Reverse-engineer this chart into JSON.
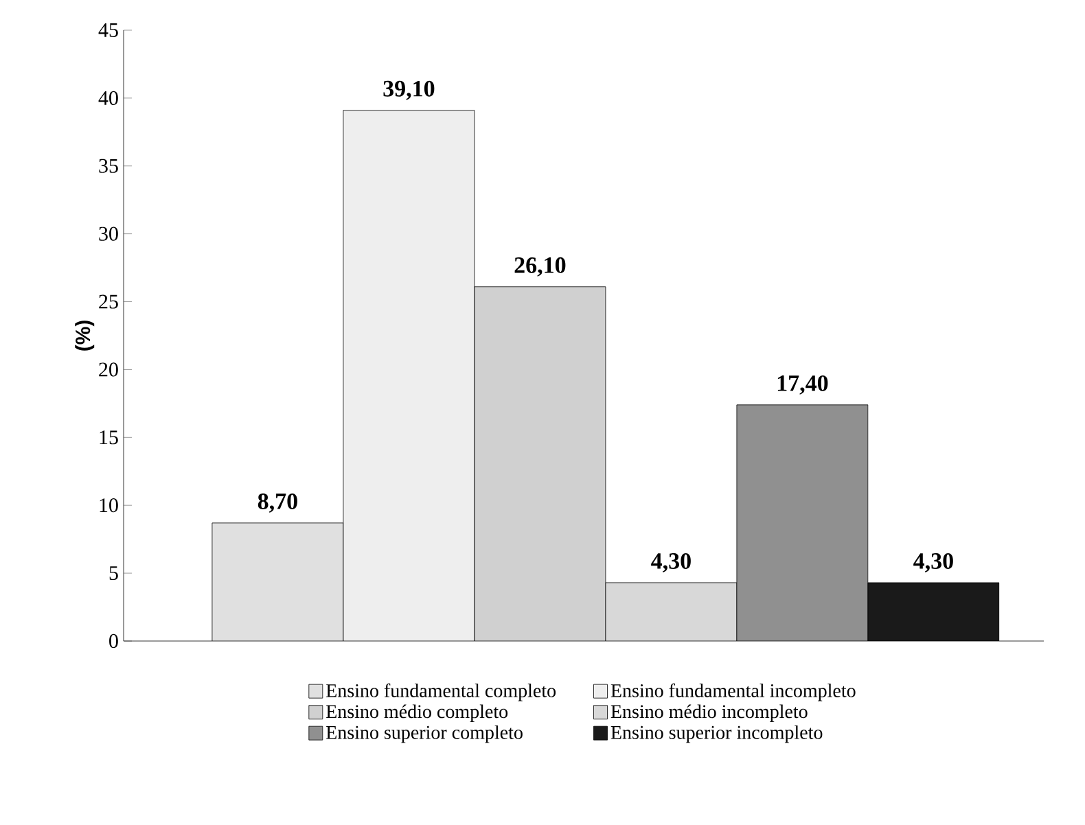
{
  "chart_data": {
    "type": "bar",
    "ylabel": "(%)",
    "categories": [
      null
    ],
    "ylim": [
      0,
      45
    ],
    "yticks": [
      0,
      5,
      10,
      15,
      20,
      25,
      30,
      35,
      40,
      45
    ],
    "grid": false,
    "legend": "bottom",
    "series": [
      {
        "name": "Ensino fundamental completo",
        "color": "#e0e0e0",
        "values": [
          8.7
        ],
        "value_labels": [
          "8,70"
        ]
      },
      {
        "name": "Ensino fundamental incompleto",
        "color": "#eeeeee",
        "values": [
          39.1
        ],
        "value_labels": [
          "39,10"
        ]
      },
      {
        "name": "Ensino médio completo",
        "color": "#d0d0d0",
        "values": [
          26.1
        ],
        "value_labels": [
          "26,10"
        ]
      },
      {
        "name": "Ensino médio incompleto",
        "color": "#d8d8d8",
        "values": [
          4.3
        ],
        "value_labels": [
          "4,30"
        ]
      },
      {
        "name": "Ensino superior completo",
        "color": "#909090",
        "values": [
          17.4
        ],
        "value_labels": [
          "17,40"
        ]
      },
      {
        "name": "Ensino superior incompleto",
        "color": "#1a1a1a",
        "values": [
          4.3
        ],
        "value_labels": [
          "4,30"
        ]
      }
    ]
  }
}
